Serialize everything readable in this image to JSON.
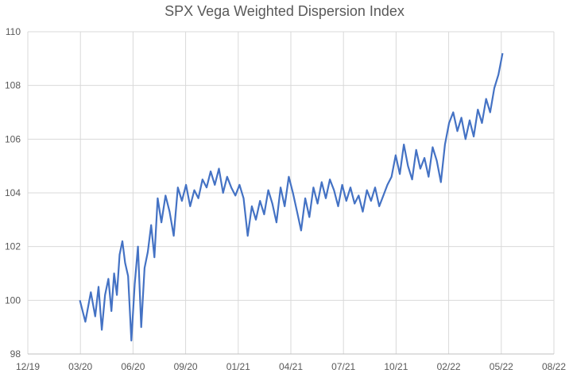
{
  "chart_data": {
    "type": "line",
    "title": "SPX Vega Weighted Dispersion Index",
    "xlabel": "",
    "ylabel": "",
    "x_ticks": [
      "12/19",
      "03/20",
      "06/20",
      "09/20",
      "01/21",
      "04/21",
      "07/21",
      "10/21",
      "02/22",
      "05/22",
      "08/22"
    ],
    "y_ticks": [
      "98",
      "100",
      "102",
      "104",
      "106",
      "108",
      "110"
    ],
    "ylim": [
      98,
      110
    ],
    "grid": true,
    "legend": "none",
    "line_color": "#4472C4",
    "series": [
      {
        "x": [
          "03/20",
          "03/20",
          "03/20",
          "04/20",
          "04/20",
          "04/20",
          "04/20",
          "04/20",
          "05/20",
          "05/20",
          "05/20",
          "05/20",
          "05/20",
          "05/20",
          "06/20",
          "06/20",
          "06/20",
          "06/20",
          "06/20",
          "07/20",
          "07/20",
          "07/20",
          "07/20",
          "07/20",
          "08/20",
          "08/20",
          "08/20",
          "08/20",
          "09/20",
          "09/20",
          "09/20",
          "09/20",
          "10/20",
          "10/20",
          "10/20",
          "10/20",
          "11/20",
          "11/20",
          "11/20",
          "11/20",
          "12/20",
          "12/20",
          "12/20",
          "12/20",
          "01/21",
          "01/21",
          "01/21",
          "01/21",
          "02/21",
          "02/21",
          "02/21",
          "02/21",
          "03/21",
          "03/21",
          "03/21",
          "03/21",
          "04/21",
          "04/21",
          "04/21",
          "04/21",
          "05/21",
          "05/21",
          "05/21",
          "05/21",
          "06/21",
          "06/21",
          "06/21",
          "06/21",
          "07/21",
          "07/21",
          "07/21",
          "07/21",
          "08/21",
          "08/21",
          "08/21",
          "08/21",
          "09/21",
          "09/21",
          "09/21",
          "09/21",
          "10/21",
          "10/21",
          "10/21",
          "10/21",
          "11/21",
          "11/21",
          "11/21",
          "11/21",
          "12/21",
          "12/21",
          "12/21",
          "12/21",
          "01/22",
          "01/22",
          "01/22",
          "01/22",
          "02/22",
          "02/22",
          "02/22",
          "02/22",
          "03/22",
          "03/22",
          "03/22",
          "03/22",
          "04/22",
          "04/22",
          "04/22",
          "04/22"
        ],
        "values": [
          100.0,
          99.2,
          100.3,
          99.4,
          100.5,
          98.9,
          100.2,
          100.8,
          99.6,
          101.0,
          100.2,
          101.7,
          102.2,
          101.4,
          100.9,
          98.5,
          100.6,
          102.0,
          99.0,
          101.2,
          101.8,
          102.8,
          101.6,
          103.8,
          102.9,
          103.9,
          103.3,
          102.4,
          104.2,
          103.7,
          104.3,
          103.5,
          104.1,
          103.8,
          104.5,
          104.2,
          104.8,
          104.3,
          104.9,
          104.0,
          104.6,
          104.2,
          103.9,
          104.3,
          103.8,
          102.4,
          103.5,
          103.0,
          103.7,
          103.2,
          104.1,
          103.6,
          102.9,
          104.2,
          103.5,
          104.6,
          104.0,
          103.3,
          102.6,
          103.8,
          103.1,
          104.2,
          103.6,
          104.4,
          103.8,
          104.5,
          104.1,
          103.5,
          104.3,
          103.7,
          104.2,
          103.6,
          103.9,
          103.3,
          104.1,
          103.7,
          104.2,
          103.5,
          103.9,
          104.3,
          104.6,
          105.4,
          104.7,
          105.8,
          105.0,
          104.5,
          105.6,
          104.9,
          105.3,
          104.6,
          105.7,
          105.2,
          104.4,
          105.8,
          106.6,
          107.0,
          106.3,
          106.8,
          106.0,
          106.7,
          106.1,
          107.1,
          106.6,
          107.5,
          107.0,
          107.9,
          108.4,
          109.2
        ]
      }
    ]
  }
}
